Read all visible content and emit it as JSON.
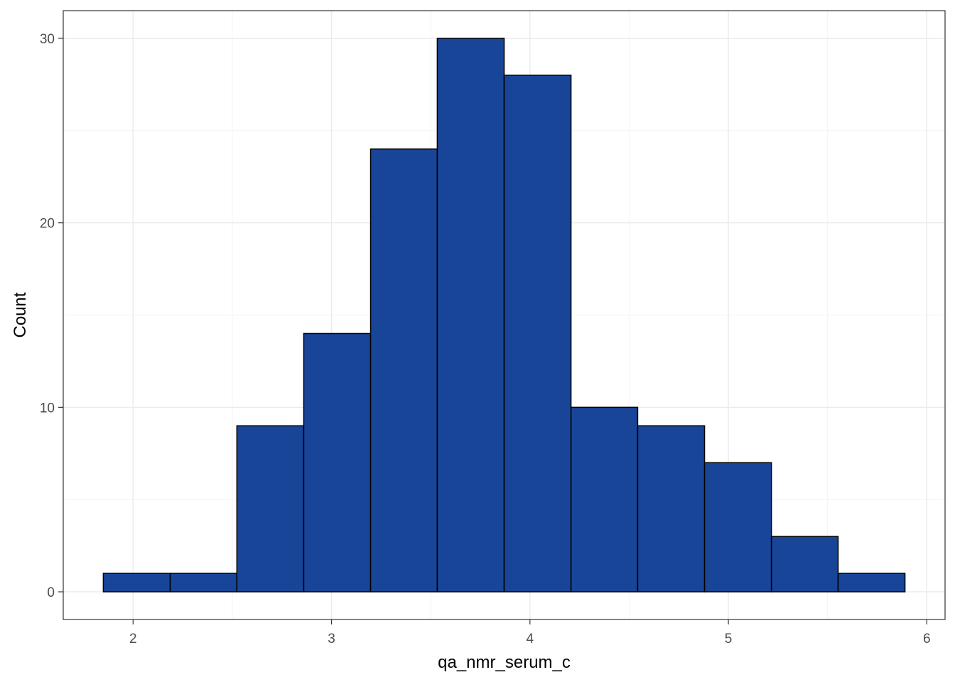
{
  "chart_data": {
    "type": "bar",
    "subtype": "histogram",
    "title": "",
    "xlabel": "qa_nmr_serum_c",
    "ylabel": "Count",
    "bins": [
      {
        "x0": 1.85,
        "x1": 2.187,
        "count": 1
      },
      {
        "x0": 2.187,
        "x1": 2.523,
        "count": 1
      },
      {
        "x0": 2.523,
        "x1": 2.86,
        "count": 9
      },
      {
        "x0": 2.86,
        "x1": 3.197,
        "count": 14
      },
      {
        "x0": 3.197,
        "x1": 3.533,
        "count": 24
      },
      {
        "x0": 3.533,
        "x1": 3.87,
        "count": 30
      },
      {
        "x0": 3.87,
        "x1": 4.207,
        "count": 28
      },
      {
        "x0": 4.207,
        "x1": 4.543,
        "count": 10
      },
      {
        "x0": 4.543,
        "x1": 4.88,
        "count": 9
      },
      {
        "x0": 4.88,
        "x1": 5.217,
        "count": 7
      },
      {
        "x0": 5.217,
        "x1": 5.553,
        "count": 3
      },
      {
        "x0": 5.553,
        "x1": 5.89,
        "count": 1
      }
    ],
    "xlim": [
      1.648,
      6.092
    ],
    "ylim": [
      -1.5,
      31.5
    ],
    "xticks": [
      2,
      3,
      4,
      5,
      6
    ],
    "yticks": [
      0,
      10,
      20,
      30
    ],
    "xtick_labels": [
      "2",
      "3",
      "4",
      "5",
      "6"
    ],
    "ytick_labels": [
      "0",
      "10",
      "20",
      "30"
    ],
    "grid": true,
    "legend": "none",
    "colors": {
      "bar_fill": "#184597",
      "bar_outline": "#000000",
      "grid_major": "#ebebeb",
      "grid_minor": "#f3f3f3",
      "panel_border": "#333333",
      "tick_text": "#4d4d4d"
    }
  }
}
